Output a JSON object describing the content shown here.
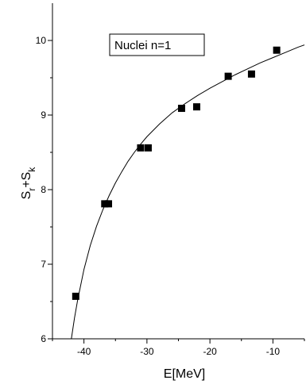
{
  "chart_data": {
    "type": "scatter",
    "title": "",
    "annotation": "Nuclei  n=1",
    "xlabel": "E[MeV]",
    "ylabel_main": "S",
    "ylabel_sub1": "r",
    "ylabel_plus": "+S",
    "ylabel_sub2": "k",
    "xlim": [
      -45,
      -5
    ],
    "ylim": [
      6,
      10.5
    ],
    "xticks_major": [
      -40,
      -30,
      -20,
      -10
    ],
    "xticks_minor": [
      -45,
      -35,
      -25,
      -15,
      -5
    ],
    "yticks_major": [
      6,
      7,
      8,
      9,
      10
    ],
    "yticks_minor": [
      6.5,
      7.5,
      8.5,
      9.5
    ],
    "grid": false,
    "series": [
      {
        "marker": "square",
        "color": "#000000",
        "x": [
          -41.3,
          -36.7,
          -36.1,
          -31.0,
          -29.8,
          -24.5,
          -22.1,
          -17.1,
          -13.4,
          -9.4
        ],
        "y": [
          6.57,
          7.81,
          7.81,
          8.56,
          8.56,
          9.09,
          9.11,
          9.52,
          9.55,
          9.87
        ]
      }
    ],
    "fit_curve": {
      "color": "#000000",
      "x": [
        -42.0,
        -41.5,
        -41.0,
        -40.0,
        -39.0,
        -38.0,
        -37.0,
        -36.0,
        -35.0,
        -34.0,
        -33.0,
        -32.0,
        -31.0,
        -30.0,
        -28.0,
        -26.0,
        -24.0,
        -22.0,
        -20.0,
        -18.0,
        -16.0,
        -14.0,
        -12.0,
        -10.0,
        -8.0,
        -6.0,
        -5.0
      ],
      "y": [
        6.0,
        6.28,
        6.52,
        6.93,
        7.25,
        7.51,
        7.73,
        7.92,
        8.09,
        8.24,
        8.38,
        8.5,
        8.61,
        8.71,
        8.88,
        9.03,
        9.15,
        9.26,
        9.36,
        9.45,
        9.54,
        9.62,
        9.7,
        9.77,
        9.84,
        9.91,
        9.94
      ]
    }
  }
}
